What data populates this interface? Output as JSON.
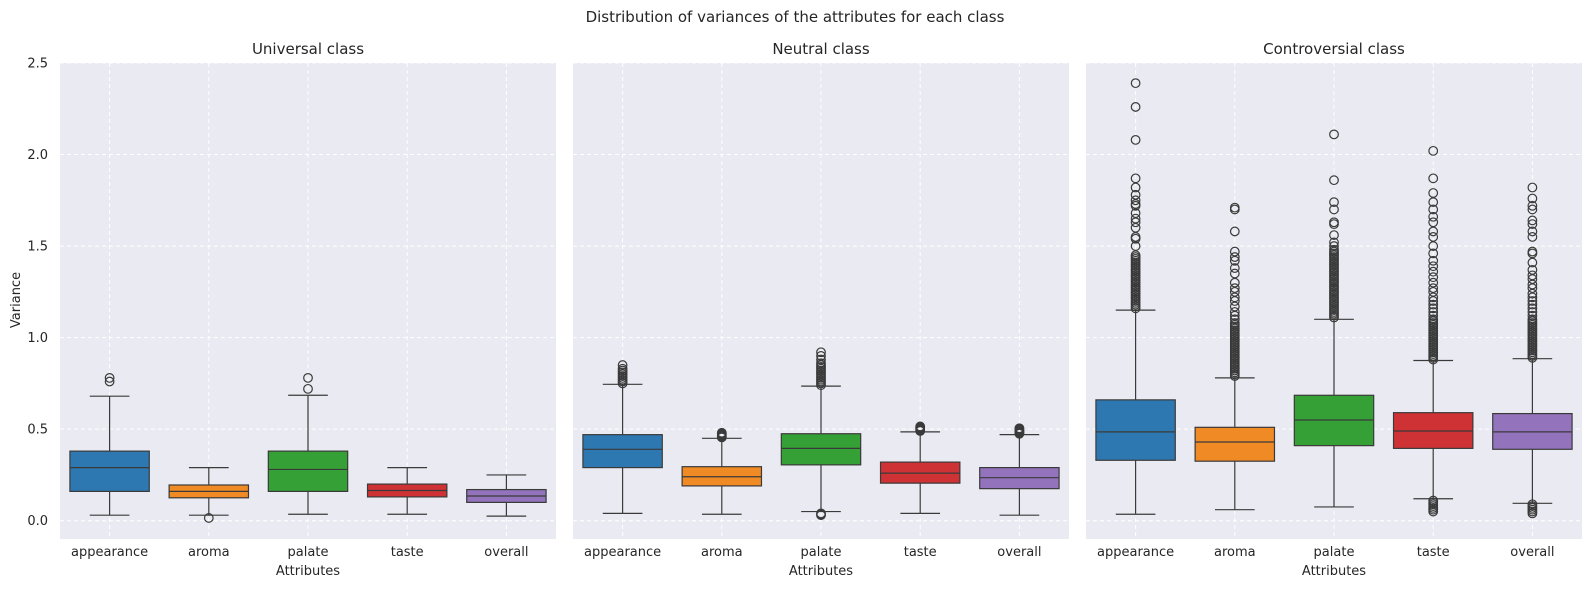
{
  "figure": {
    "suptitle": "Distribution of variances of the attributes for each class",
    "ylabel": "Variance"
  },
  "colors": {
    "appearance": "#2e78b1",
    "aroma": "#f08a25",
    "palate": "#35a035",
    "taste": "#cf3235",
    "overall": "#9473bd",
    "panel_background": "#eaeaf2",
    "grid": "#ffffff",
    "line": "#3a3a3a"
  },
  "chart_data": [
    {
      "type": "box",
      "title": "Universal class",
      "xlabel": "Attributes",
      "ylabel": "Variance",
      "ylim": [
        -0.1,
        2.5
      ],
      "yticks": [
        0.0,
        0.5,
        1.0,
        1.5,
        2.0,
        2.5
      ],
      "ytick_labels": [
        "0.0",
        "0.5",
        "1.0",
        "1.5",
        "2.0",
        "2.5"
      ],
      "grid": true,
      "categories": [
        "appearance",
        "aroma",
        "palate",
        "taste",
        "overall"
      ],
      "boxes": [
        {
          "q1": 0.16,
          "median": 0.29,
          "q3": 0.38,
          "whisker_low": 0.03,
          "whisker_high": 0.68,
          "outliers": [
            0.76,
            0.78
          ]
        },
        {
          "q1": 0.125,
          "median": 0.16,
          "q3": 0.195,
          "whisker_low": 0.03,
          "whisker_high": 0.29,
          "outliers": [
            0.015
          ]
        },
        {
          "q1": 0.16,
          "median": 0.28,
          "q3": 0.38,
          "whisker_low": 0.035,
          "whisker_high": 0.685,
          "outliers": [
            0.72,
            0.78
          ]
        },
        {
          "q1": 0.13,
          "median": 0.165,
          "q3": 0.2,
          "whisker_low": 0.035,
          "whisker_high": 0.29,
          "outliers": []
        },
        {
          "q1": 0.1,
          "median": 0.135,
          "q3": 0.17,
          "whisker_low": 0.025,
          "whisker_high": 0.25,
          "outliers": []
        }
      ]
    },
    {
      "type": "box",
      "title": "Neutral class",
      "xlabel": "Attributes",
      "ylim": [
        -0.1,
        2.5
      ],
      "grid": true,
      "categories": [
        "appearance",
        "aroma",
        "palate",
        "taste",
        "overall"
      ],
      "boxes": [
        {
          "q1": 0.29,
          "median": 0.39,
          "q3": 0.47,
          "whisker_low": 0.04,
          "whisker_high": 0.745,
          "outliers": [
            0.75,
            0.76,
            0.77,
            0.78,
            0.79,
            0.8,
            0.81,
            0.82,
            0.83,
            0.85
          ]
        },
        {
          "q1": 0.19,
          "median": 0.24,
          "q3": 0.295,
          "whisker_low": 0.035,
          "whisker_high": 0.45,
          "outliers": [
            0.455,
            0.46,
            0.465,
            0.47,
            0.475,
            0.48
          ]
        },
        {
          "q1": 0.305,
          "median": 0.395,
          "q3": 0.475,
          "whisker_low": 0.05,
          "whisker_high": 0.735,
          "outliers": [
            0.03,
            0.035,
            0.04,
            0.74,
            0.75,
            0.76,
            0.77,
            0.78,
            0.79,
            0.8,
            0.81,
            0.82,
            0.83,
            0.84,
            0.85,
            0.86,
            0.88,
            0.9,
            0.92
          ]
        },
        {
          "q1": 0.205,
          "median": 0.26,
          "q3": 0.32,
          "whisker_low": 0.04,
          "whisker_high": 0.485,
          "outliers": [
            0.49,
            0.495,
            0.5,
            0.505,
            0.51,
            0.515
          ]
        },
        {
          "q1": 0.175,
          "median": 0.235,
          "q3": 0.29,
          "whisker_low": 0.03,
          "whisker_high": 0.47,
          "outliers": [
            0.475,
            0.48,
            0.485,
            0.49,
            0.495,
            0.5,
            0.505
          ]
        }
      ]
    },
    {
      "type": "box",
      "title": "Controversial class",
      "xlabel": "Attributes",
      "ylim": [
        -0.1,
        2.5
      ],
      "grid": true,
      "categories": [
        "appearance",
        "aroma",
        "palate",
        "taste",
        "overall"
      ],
      "boxes": [
        {
          "q1": 0.33,
          "median": 0.485,
          "q3": 0.66,
          "whisker_low": 0.035,
          "whisker_high": 1.15,
          "outliers": [
            1.16,
            1.17,
            1.18,
            1.19,
            1.2,
            1.21,
            1.22,
            1.23,
            1.24,
            1.25,
            1.26,
            1.27,
            1.28,
            1.29,
            1.3,
            1.31,
            1.32,
            1.33,
            1.34,
            1.35,
            1.36,
            1.37,
            1.38,
            1.39,
            1.4,
            1.41,
            1.42,
            1.43,
            1.44,
            1.45,
            1.5,
            1.54,
            1.55,
            1.6,
            1.63,
            1.65,
            1.68,
            1.72,
            1.73,
            1.75,
            1.78,
            1.82,
            1.87,
            2.08,
            2.26,
            2.39
          ]
        },
        {
          "q1": 0.325,
          "median": 0.43,
          "q3": 0.51,
          "whisker_low": 0.06,
          "whisker_high": 0.78,
          "outliers": [
            0.79,
            0.8,
            0.81,
            0.82,
            0.83,
            0.84,
            0.85,
            0.86,
            0.87,
            0.88,
            0.89,
            0.9,
            0.91,
            0.92,
            0.93,
            0.94,
            0.95,
            0.96,
            0.97,
            0.98,
            0.99,
            1.0,
            1.01,
            1.02,
            1.03,
            1.04,
            1.05,
            1.06,
            1.07,
            1.08,
            1.1,
            1.12,
            1.14,
            1.17,
            1.2,
            1.22,
            1.25,
            1.27,
            1.3,
            1.35,
            1.38,
            1.42,
            1.44,
            1.47,
            1.58,
            1.7,
            1.71
          ]
        },
        {
          "q1": 0.41,
          "median": 0.55,
          "q3": 0.685,
          "whisker_low": 0.075,
          "whisker_high": 1.1,
          "outliers": [
            1.11,
            1.12,
            1.13,
            1.14,
            1.15,
            1.16,
            1.17,
            1.18,
            1.19,
            1.2,
            1.21,
            1.22,
            1.23,
            1.24,
            1.25,
            1.26,
            1.27,
            1.28,
            1.29,
            1.3,
            1.31,
            1.32,
            1.33,
            1.34,
            1.35,
            1.36,
            1.37,
            1.38,
            1.39,
            1.4,
            1.41,
            1.42,
            1.43,
            1.44,
            1.45,
            1.46,
            1.47,
            1.48,
            1.5,
            1.52,
            1.56,
            1.62,
            1.63,
            1.7,
            1.74,
            1.86,
            2.11
          ]
        },
        {
          "q1": 0.395,
          "median": 0.49,
          "q3": 0.59,
          "whisker_low": 0.12,
          "whisker_high": 0.875,
          "outliers": [
            0.05,
            0.06,
            0.07,
            0.08,
            0.09,
            0.1,
            0.11,
            0.88,
            0.89,
            0.9,
            0.91,
            0.92,
            0.93,
            0.94,
            0.95,
            0.96,
            0.97,
            0.98,
            0.99,
            1.0,
            1.01,
            1.02,
            1.03,
            1.04,
            1.05,
            1.06,
            1.07,
            1.08,
            1.09,
            1.1,
            1.12,
            1.14,
            1.16,
            1.18,
            1.2,
            1.22,
            1.25,
            1.27,
            1.3,
            1.33,
            1.36,
            1.39,
            1.42,
            1.46,
            1.5,
            1.55,
            1.58,
            1.63,
            1.66,
            1.7,
            1.74,
            1.79,
            1.87,
            2.02
          ]
        },
        {
          "q1": 0.39,
          "median": 0.485,
          "q3": 0.585,
          "whisker_low": 0.095,
          "whisker_high": 0.885,
          "outliers": [
            0.04,
            0.05,
            0.06,
            0.07,
            0.08,
            0.09,
            0.89,
            0.9,
            0.91,
            0.92,
            0.93,
            0.94,
            0.95,
            0.96,
            0.97,
            0.98,
            0.99,
            1.0,
            1.01,
            1.02,
            1.03,
            1.04,
            1.05,
            1.06,
            1.07,
            1.08,
            1.09,
            1.1,
            1.12,
            1.14,
            1.16,
            1.18,
            1.2,
            1.22,
            1.24,
            1.27,
            1.29,
            1.32,
            1.34,
            1.37,
            1.41,
            1.46,
            1.47,
            1.55,
            1.58,
            1.62,
            1.64,
            1.7,
            1.72,
            1.76,
            1.82
          ]
        }
      ]
    }
  ]
}
